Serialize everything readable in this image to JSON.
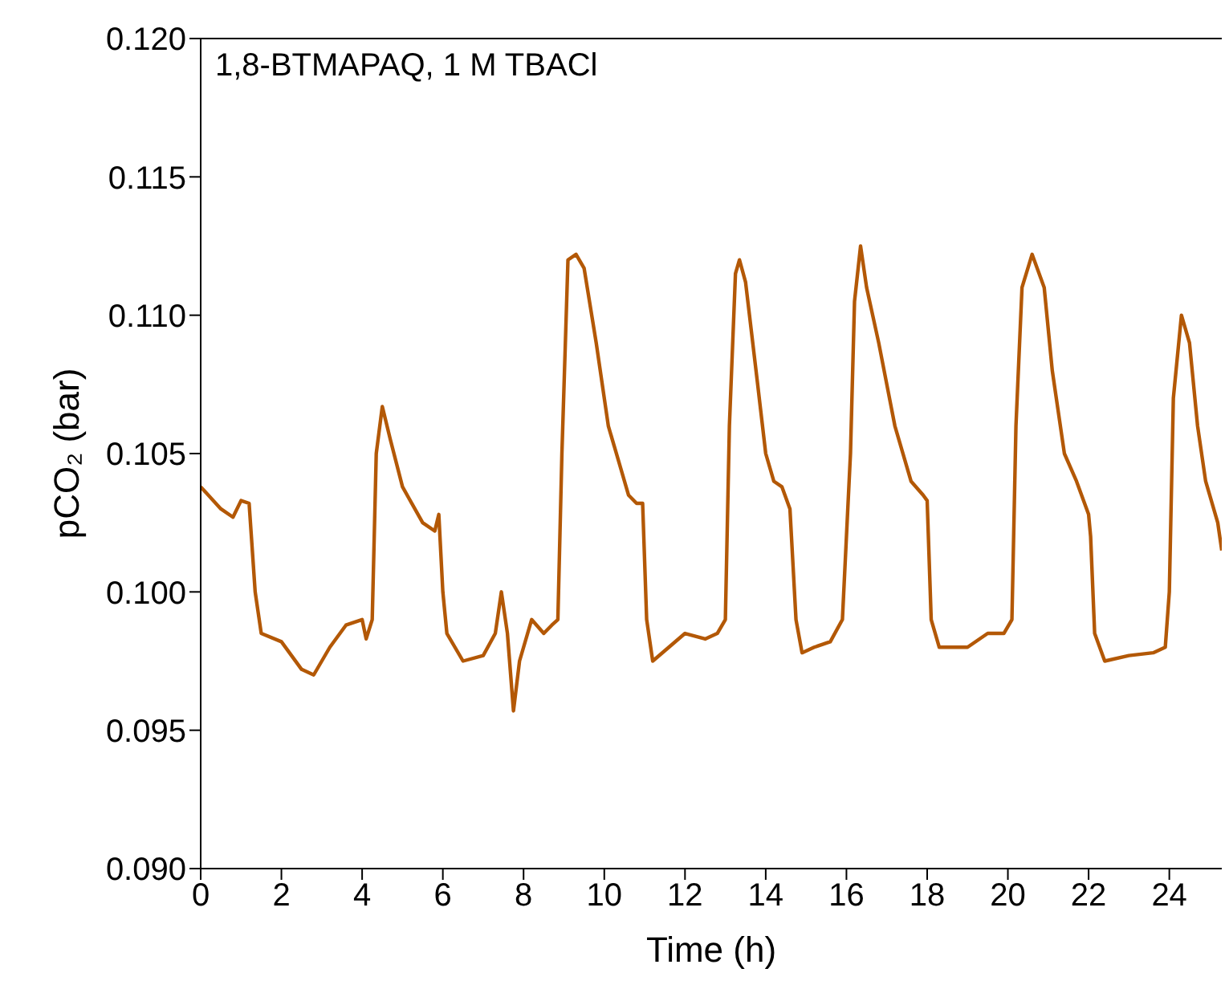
{
  "chart_data": {
    "type": "line",
    "xlabel": "Time (h)",
    "ylabel": "pCO₂ (bar)",
    "annotations": [
      "1,8-BTMAPAQ, 1 M TBACl"
    ],
    "xlim": [
      0,
      25.3
    ],
    "xticks": [
      0,
      2,
      4,
      6,
      8,
      10,
      12,
      14,
      16,
      18,
      20,
      22,
      24
    ],
    "ylim": [
      0.09,
      0.12
    ],
    "yticks": [
      {
        "value": 0.09,
        "label": "0.090"
      },
      {
        "value": 0.095,
        "label": "0.095"
      },
      {
        "value": 0.1,
        "label": "0.100"
      },
      {
        "value": 0.105,
        "label": "0.105"
      },
      {
        "value": 0.11,
        "label": "0.110"
      },
      {
        "value": 0.115,
        "label": "0.115"
      },
      {
        "value": 0.12,
        "label": "0.120"
      }
    ],
    "marker": "none",
    "line_style": "solid",
    "series": [
      {
        "color": "#b35806",
        "x": [
          0,
          0.5,
          0.8,
          1.0,
          1.2,
          1.35,
          1.5,
          2.0,
          2.5,
          2.8,
          3.2,
          3.6,
          4.0,
          4.1,
          4.25,
          4.35,
          4.5,
          4.7,
          5.0,
          5.5,
          5.8,
          5.9,
          6.0,
          6.1,
          6.5,
          7.0,
          7.3,
          7.45,
          7.6,
          7.75,
          7.9,
          8.2,
          8.5,
          8.7,
          8.85,
          8.95,
          9.1,
          9.3,
          9.5,
          9.8,
          10.1,
          10.4,
          10.6,
          10.8,
          10.95,
          11.05,
          11.2,
          11.6,
          12.0,
          12.5,
          12.8,
          13.0,
          13.1,
          13.25,
          13.35,
          13.5,
          13.8,
          14.0,
          14.2,
          14.4,
          14.6,
          14.75,
          14.9,
          15.2,
          15.6,
          15.9,
          16.1,
          16.2,
          16.35,
          16.5,
          16.8,
          17.2,
          17.6,
          17.9,
          18.0,
          18.1,
          18.3,
          19.0,
          19.5,
          19.9,
          20.1,
          20.2,
          20.35,
          20.6,
          20.9,
          21.1,
          21.4,
          21.7,
          22.0,
          22.05,
          22.15,
          22.4,
          23.0,
          23.6,
          23.9,
          24.0,
          24.1,
          24.3,
          24.5,
          24.7,
          24.9,
          25.2,
          25.3
        ],
        "values": [
          0.1038,
          0.103,
          0.1027,
          0.1033,
          0.1032,
          0.1,
          0.0985,
          0.0982,
          0.0972,
          0.097,
          0.098,
          0.0988,
          0.099,
          0.0983,
          0.099,
          0.105,
          0.1067,
          0.1055,
          0.1038,
          0.1025,
          0.1022,
          0.1028,
          0.1,
          0.0985,
          0.0975,
          0.0977,
          0.0985,
          0.1,
          0.0985,
          0.0957,
          0.0975,
          0.099,
          0.0985,
          0.0988,
          0.099,
          0.105,
          0.112,
          0.1122,
          0.1117,
          0.109,
          0.106,
          0.1045,
          0.1035,
          0.1032,
          0.1032,
          0.099,
          0.0975,
          0.098,
          0.0985,
          0.0983,
          0.0985,
          0.099,
          0.106,
          0.1115,
          0.112,
          0.1112,
          0.1075,
          0.105,
          0.104,
          0.1038,
          0.103,
          0.099,
          0.0978,
          0.098,
          0.0982,
          0.099,
          0.105,
          0.1105,
          0.1125,
          0.111,
          0.109,
          0.106,
          0.104,
          0.1035,
          0.1033,
          0.099,
          0.098,
          0.098,
          0.0985,
          0.0985,
          0.099,
          0.106,
          0.111,
          0.1122,
          0.111,
          0.108,
          0.105,
          0.104,
          0.1028,
          0.102,
          0.0985,
          0.0975,
          0.0977,
          0.0978,
          0.098,
          0.1,
          0.107,
          0.11,
          0.109,
          0.106,
          0.104,
          0.1025,
          0.1015
        ]
      }
    ]
  }
}
